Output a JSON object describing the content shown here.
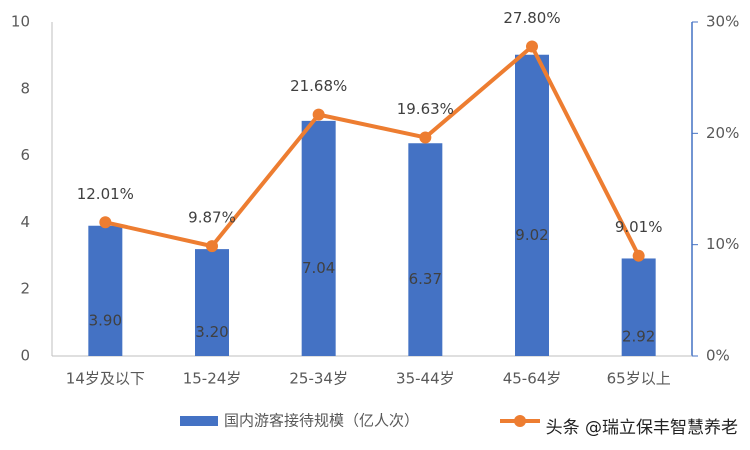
{
  "chart_data": {
    "type": "bar",
    "categories": [
      "14岁及以下",
      "15-24岁",
      "25-34岁",
      "35-44岁",
      "45-64岁",
      "65岁以上"
    ],
    "series": [
      {
        "name": "国内游客接待规模（亿人次）",
        "type": "bar",
        "color": "#4472c4",
        "values": [
          3.9,
          3.2,
          7.04,
          6.37,
          9.02,
          2.92
        ],
        "value_labels": [
          "3.90",
          "3.20",
          "7.04",
          "6.37",
          "9.02",
          "2.92"
        ]
      },
      {
        "type": "line",
        "axis": "y2",
        "color": "#ed7d31",
        "values": [
          12.01,
          9.87,
          21.68,
          19.63,
          27.8,
          9.01
        ],
        "value_labels": [
          "12.01%",
          "9.87%",
          "21.68%",
          "19.63%",
          "27.80%",
          "9.01%"
        ]
      }
    ],
    "ylim": [
      0,
      10
    ],
    "yticks": [
      0,
      2,
      4,
      6,
      8,
      10
    ],
    "y2lim": [
      0,
      30
    ],
    "y2ticks": [
      {
        "value": 0,
        "label": "0%"
      },
      {
        "value": 10,
        "label": "10%"
      },
      {
        "value": 20,
        "label": "20%"
      },
      {
        "value": 30,
        "label": "30%"
      }
    ],
    "legend": "bottom",
    "watermark": "头条 @瑞立保丰智慧养老"
  }
}
